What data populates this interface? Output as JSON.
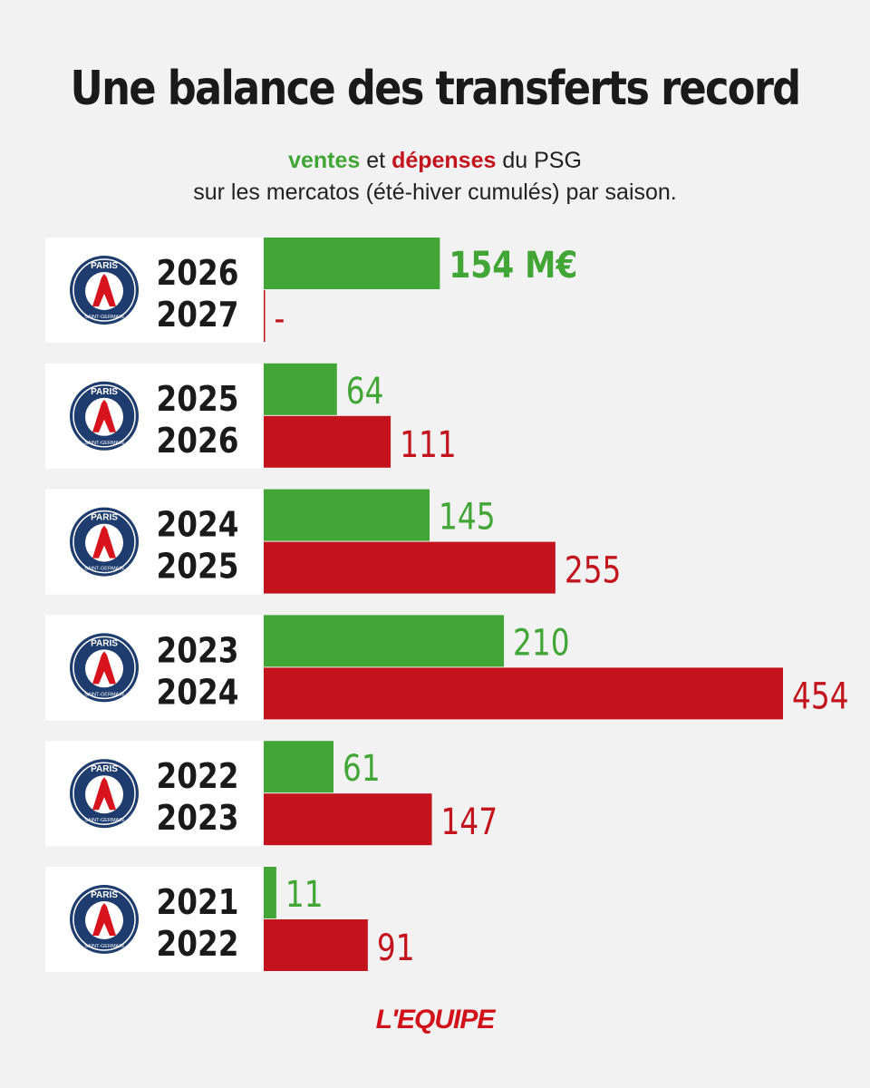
{
  "title": "Une balance des transferts record",
  "subtitle": {
    "ventes": "ventes",
    "et": "et",
    "depenses": "dépenses",
    "rest1": "du PSG",
    "line2": "sur les mercatos (été-hiver cumulés) par saison."
  },
  "colors": {
    "ventes": "#41a636",
    "depenses": "#c3141e",
    "text": "#1a1a1a"
  },
  "club_badge": {
    "icon": "psg-crest-icon",
    "top": "PARIS",
    "bottom": "SAINT-GERMAIN"
  },
  "chart_data": {
    "type": "bar",
    "orientation": "horizontal",
    "unit": "M€",
    "categories": [
      {
        "start": "2026",
        "end": "2027"
      },
      {
        "start": "2025",
        "end": "2026"
      },
      {
        "start": "2024",
        "end": "2025"
      },
      {
        "start": "2023",
        "end": "2024"
      },
      {
        "start": "2022",
        "end": "2023"
      },
      {
        "start": "2021",
        "end": "2022"
      }
    ],
    "series": [
      {
        "name": "ventes",
        "values": [
          154,
          64,
          145,
          210,
          61,
          11
        ],
        "labels": [
          "154 M€",
          "64",
          "145",
          "210",
          "61",
          "11"
        ]
      },
      {
        "name": "dépenses",
        "values": [
          0,
          111,
          255,
          454,
          147,
          91
        ],
        "labels": [
          "-",
          "111",
          "255",
          "454",
          "147",
          "91"
        ]
      }
    ],
    "xlim": [
      0,
      454
    ]
  },
  "source": "L'EQUIPE"
}
